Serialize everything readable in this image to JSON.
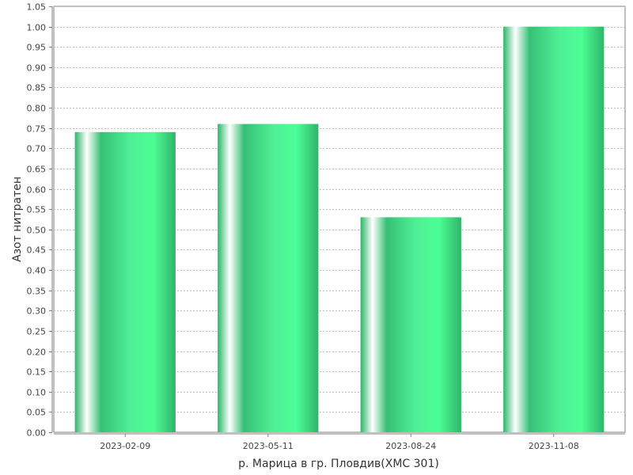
{
  "chart_data": {
    "type": "bar",
    "title": "",
    "xlabel": "р. Марица в гр. Пловдив(ХМС 301)",
    "ylabel": "Азот нитратен",
    "categories": [
      "2023-02-09",
      "2023-05-11",
      "2023-08-24",
      "2023-11-08"
    ],
    "values": [
      0.74,
      0.76,
      0.53,
      1.0
    ],
    "ylim": [
      0,
      1.05
    ],
    "ytick_step": 0.05,
    "grid": true,
    "legend": "none",
    "colors": {
      "bar_dark": "#2fb56a",
      "bar_light": "#4dfd96",
      "bar_highlight": "#ffffff",
      "grid": "#c0c0c0",
      "axis": "#808080"
    }
  }
}
